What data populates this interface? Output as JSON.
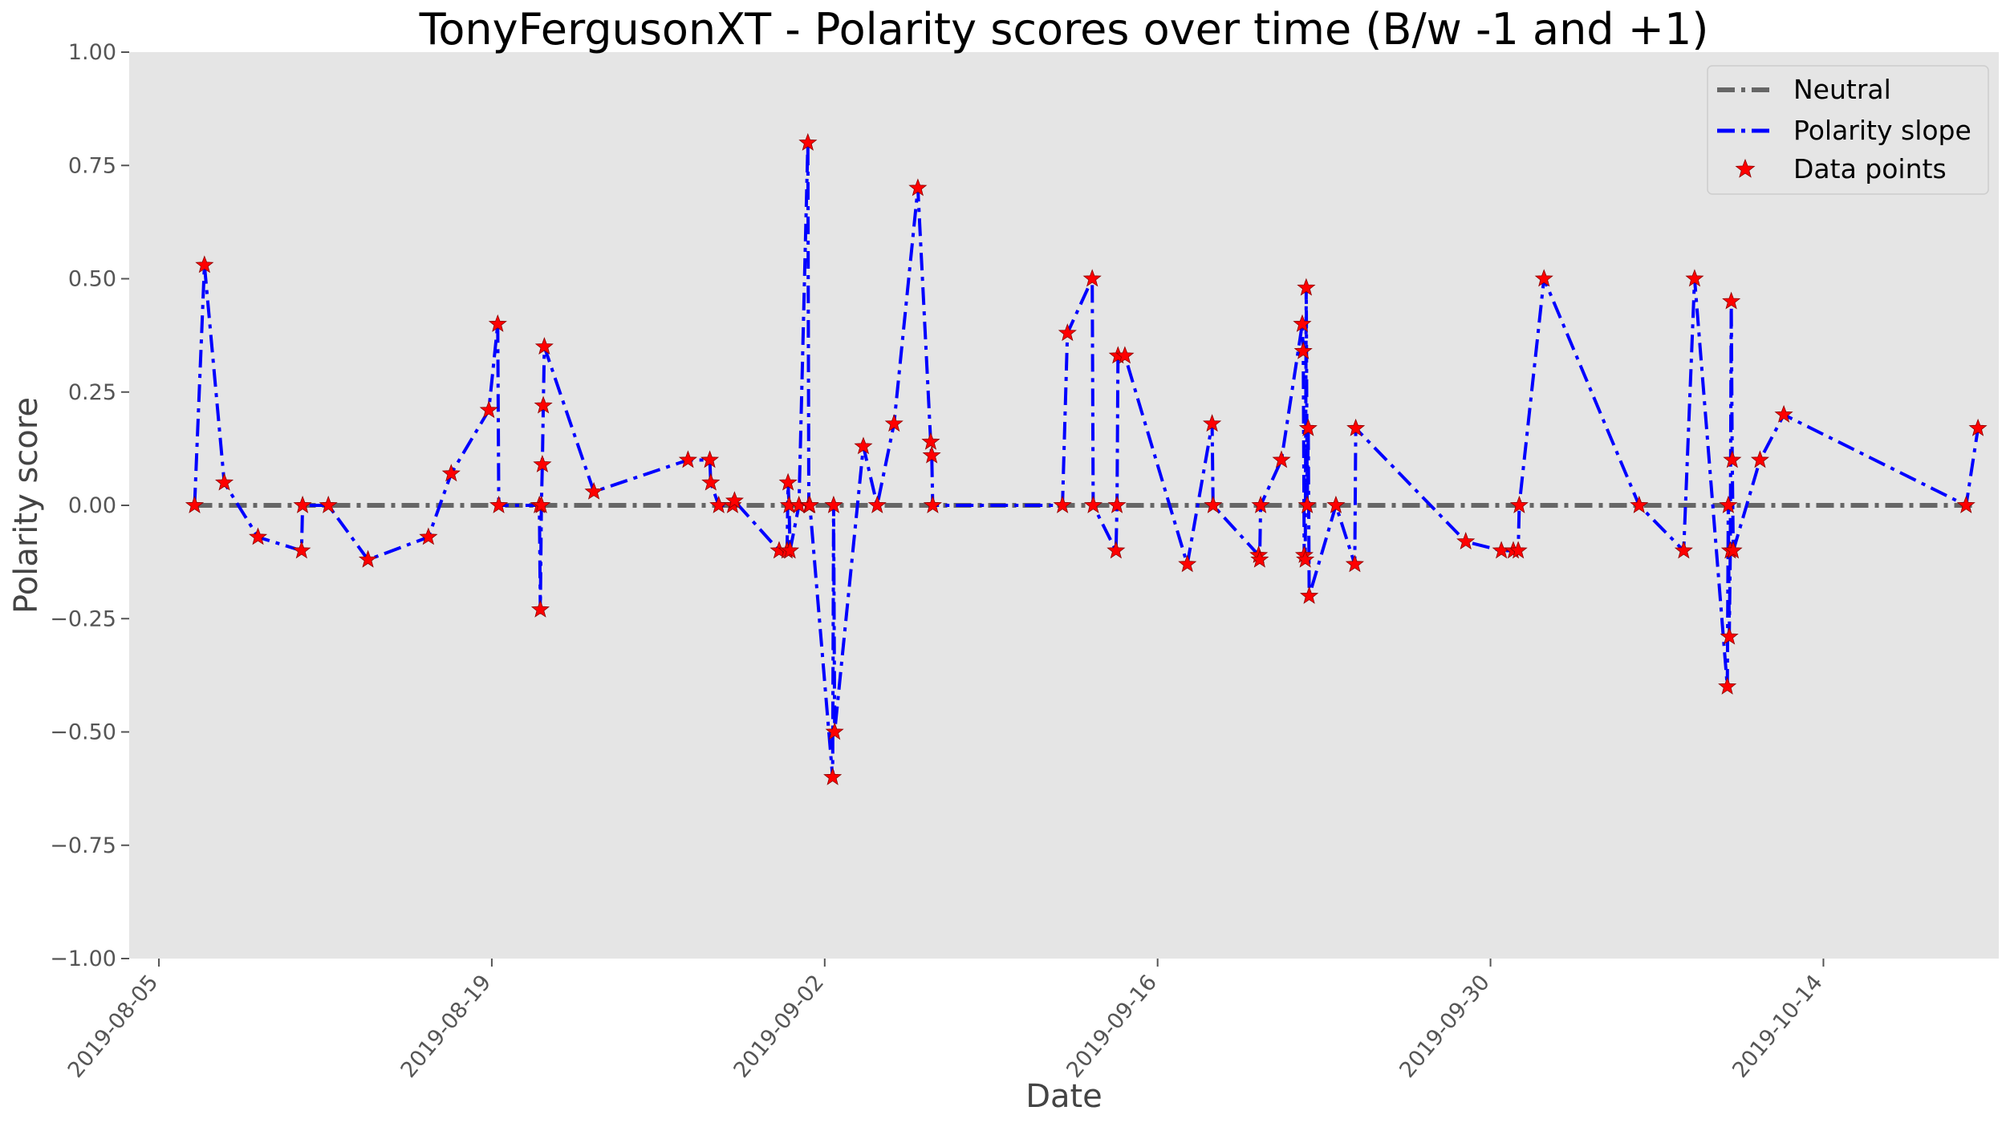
{
  "chart_data": {
    "type": "line",
    "title": "TonyFergusonXT - Polarity scores over time (B/w -1 and +1)",
    "xlabel": "Date",
    "ylabel": "Polarity score",
    "x_axis_type": "date",
    "xlim": [
      "2019-08-03T18:00",
      "2019-10-21T09:00"
    ],
    "ylim": [
      -1.0,
      1.0
    ],
    "x_ticks": [
      "2019-08-05",
      "2019-08-19",
      "2019-09-02",
      "2019-09-16",
      "2019-09-30",
      "2019-10-14"
    ],
    "y_ticks": [
      "−1.00",
      "−0.75",
      "−0.50",
      "−0.25",
      "0.00",
      "0.25",
      "0.50",
      "0.75",
      "1.00"
    ],
    "y_tick_values": [
      -1.0,
      -0.75,
      -0.5,
      -0.25,
      0.0,
      0.25,
      0.5,
      0.75,
      1.0
    ],
    "grid": false,
    "legend_position": "top-right",
    "background_color": "#e5e5e5",
    "series": [
      {
        "name": "Neutral",
        "kind": "line",
        "style": "dash-dot",
        "color": "#666666",
        "x": [
          "2019-08-06T12:00",
          "2019-10-20T12:00"
        ],
        "y": [
          0.0,
          0.0
        ]
      },
      {
        "name": "Polarity slope",
        "kind": "line",
        "style": "dash-dot",
        "color": "#0000ff",
        "x": [
          "2019-08-06T12:00",
          "2019-08-06T22:00",
          "2019-08-07T18:00",
          "2019-08-09T04:00",
          "2019-08-11T00:00",
          "2019-08-11T01:00",
          "2019-08-12T03:00",
          "2019-08-13T19:00",
          "2019-08-16T08:00",
          "2019-08-17T07:00",
          "2019-08-18T21:00",
          "2019-08-19T06:00",
          "2019-08-19T07:00",
          "2019-08-21T00:00",
          "2019-08-21T01:00",
          "2019-08-21T02:00",
          "2019-08-21T03:00",
          "2019-08-21T04:00",
          "2019-08-21T05:00",
          "2019-08-23T07:00",
          "2019-08-27T06:00",
          "2019-08-28T04:00",
          "2019-08-28T05:00",
          "2019-08-28T13:00",
          "2019-08-29T03:00",
          "2019-08-29T05:00",
          "2019-08-31T02:00",
          "2019-08-31T10:00",
          "2019-08-31T11:00",
          "2019-08-31T12:00",
          "2019-08-31T13:00",
          "2019-08-31T22:00",
          "2019-09-01T07:00",
          "2019-09-01T08:00",
          "2019-09-01T09:00",
          "2019-09-02T08:00",
          "2019-09-02T09:00",
          "2019-09-02T10:00",
          "2019-09-03T15:00",
          "2019-09-04T05:00",
          "2019-09-04T22:00",
          "2019-09-05T22:00",
          "2019-09-06T11:00",
          "2019-09-06T12:00",
          "2019-09-06T13:00",
          "2019-09-12T00:00",
          "2019-09-12T05:00",
          "2019-09-13T06:00",
          "2019-09-13T07:00",
          "2019-09-14T06:00",
          "2019-09-14T07:00",
          "2019-09-14T08:00",
          "2019-09-14T15:00",
          "2019-09-17T06:00",
          "2019-09-18T07:00",
          "2019-09-18T08:00",
          "2019-09-20T06:00",
          "2019-09-20T07:00",
          "2019-09-20T08:00",
          "2019-09-21T05:00",
          "2019-09-22T02:00",
          "2019-09-22T03:00",
          "2019-09-22T04:00",
          "2019-09-22T05:00",
          "2019-09-22T06:00",
          "2019-09-22T07:00",
          "2019-09-22T08:00",
          "2019-09-22T09:00",
          "2019-09-23T12:00",
          "2019-09-24T07:00",
          "2019-09-24T08:00",
          "2019-09-28T23:00",
          "2019-09-30T11:00",
          "2019-09-30T23:00",
          "2019-10-01T04:00",
          "2019-10-01T05:00",
          "2019-10-02T06:00",
          "2019-10-06T06:00",
          "2019-10-08T03:00",
          "2019-10-08T14:00",
          "2019-10-09T23:00",
          "2019-10-10T00:00",
          "2019-10-10T01:00",
          "2019-10-10T02:00",
          "2019-10-10T03:00",
          "2019-10-10T04:00",
          "2019-10-10T05:00",
          "2019-10-11T08:00",
          "2019-10-12T08:00",
          "2019-10-20T00:00",
          "2019-10-20T12:00"
        ],
        "y": [
          0.0,
          0.53,
          0.05,
          -0.07,
          -0.1,
          0.0,
          0.0,
          -0.12,
          -0.07,
          0.07,
          0.21,
          0.4,
          0.0,
          0.0,
          -0.23,
          0.0,
          0.09,
          0.22,
          0.35,
          0.03,
          0.1,
          0.1,
          0.05,
          0.0,
          0.0,
          0.01,
          -0.1,
          -0.1,
          0.05,
          0.0,
          -0.1,
          0.0,
          0.8,
          0.0,
          0.0,
          -0.6,
          0.0,
          -0.5,
          0.13,
          0.0,
          0.18,
          0.7,
          0.14,
          0.11,
          0.0,
          0.0,
          0.38,
          0.5,
          0.0,
          -0.1,
          0.0,
          0.33,
          0.33,
          -0.13,
          0.18,
          0.0,
          -0.11,
          -0.12,
          0.0,
          0.1,
          0.4,
          0.34,
          -0.11,
          -0.12,
          0.48,
          0.0,
          0.17,
          -0.2,
          0.0,
          -0.13,
          0.17,
          -0.08,
          -0.1,
          -0.1,
          -0.1,
          0.0,
          0.5,
          0.0,
          -0.1,
          0.5,
          -0.4,
          0.0,
          -0.29,
          -0.1,
          0.45,
          0.1,
          -0.1,
          0.1,
          0.2,
          0.0,
          0.17
        ]
      },
      {
        "name": "Data points",
        "kind": "scatter",
        "marker": "star",
        "color": "#ff0000",
        "same_points_as": "Polarity slope"
      }
    ]
  }
}
